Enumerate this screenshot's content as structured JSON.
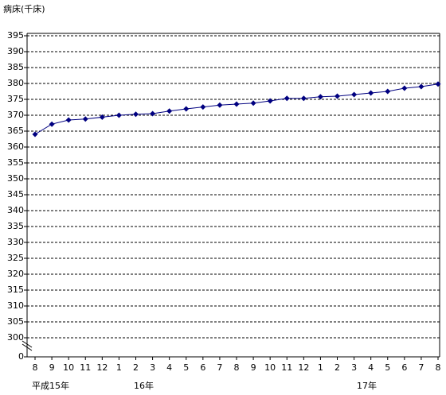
{
  "chart_data": {
    "type": "line",
    "y_label": "病床(千床)",
    "categories": [
      "8",
      "9",
      "10",
      "11",
      "12",
      "1",
      "2",
      "3",
      "4",
      "5",
      "6",
      "7",
      "8",
      "9",
      "10",
      "11",
      "12",
      "1",
      "2",
      "3",
      "4",
      "5",
      "6",
      "7",
      "8"
    ],
    "year_labels": [
      "平成15年",
      "16年",
      "17年"
    ],
    "series": [
      {
        "name": "病床",
        "color": "#000080",
        "values": [
          364.0,
          367.2,
          368.5,
          368.8,
          369.4,
          370.0,
          370.3,
          370.5,
          371.3,
          372.0,
          372.6,
          373.2,
          373.5,
          373.8,
          374.5,
          375.3,
          375.3,
          375.8,
          376.0,
          376.5,
          377.0,
          377.5,
          378.5,
          379.0,
          379.8
        ]
      }
    ],
    "ylim": [
      0,
      395
    ],
    "axis_break": [
      0,
      300
    ],
    "yticks": [
      0,
      300,
      305,
      310,
      315,
      320,
      325,
      330,
      335,
      340,
      345,
      350,
      355,
      360,
      365,
      370,
      375,
      380,
      385,
      390,
      395
    ],
    "grid": true
  }
}
